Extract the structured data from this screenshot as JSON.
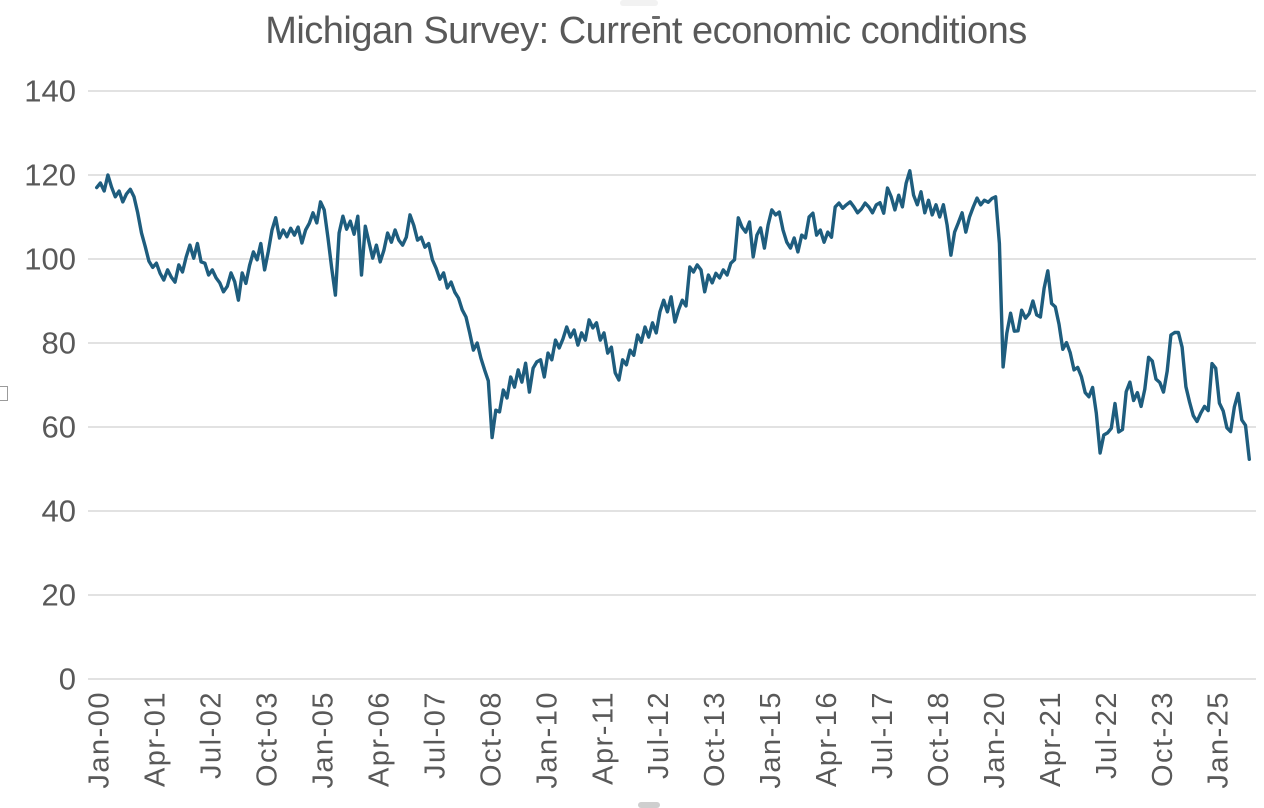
{
  "chart_data": {
    "type": "line",
    "title": "Michigan Survey: Current economic conditions",
    "xlabel": "",
    "ylabel": "",
    "ylim": [
      0,
      140
    ],
    "y_ticks": [
      0,
      20,
      40,
      60,
      80,
      100,
      120,
      140
    ],
    "grid": "horizontal",
    "legend": "none",
    "gridline_color": "#D9D9D9",
    "axis_label_color": "#595959",
    "title_color": "#595959",
    "x_tick_interval_months": 15,
    "x_tick_labels": [
      "Jan-00",
      "Apr-01",
      "Jul-02",
      "Oct-03",
      "Jan-05",
      "Apr-06",
      "Jul-07",
      "Oct-08",
      "Jan-10",
      "Apr-11",
      "Jul-12",
      "Oct-13",
      "Jan-15",
      "Apr-16",
      "Jul-17",
      "Oct-18",
      "Jan-20",
      "Apr-21",
      "Jul-22",
      "Oct-23",
      "Jan-25"
    ],
    "series": [
      {
        "name": "Current economic conditions",
        "color": "#1E5D7E",
        "frequency": "monthly",
        "start": "Jan-2000",
        "end": "Oct-2025",
        "values": [
          117.0,
          118.1,
          116.2,
          120.0,
          117.1,
          114.8,
          116.2,
          113.6,
          115.5,
          116.6,
          114.8,
          111.0,
          106.2,
          103.0,
          99.5,
          98.0,
          99.0,
          96.6,
          95.0,
          97.4,
          95.7,
          94.5,
          98.6,
          96.9,
          100.5,
          103.3,
          100.2,
          103.7,
          99.3,
          99.0,
          96.2,
          97.4,
          95.5,
          94.3,
          92.2,
          93.5,
          96.7,
          94.6,
          90.2,
          96.7,
          94.2,
          98.5,
          101.7,
          99.8,
          103.7,
          97.4,
          101.8,
          106.9,
          109.8,
          105.0,
          106.9,
          105.3,
          107.3,
          105.7,
          107.6,
          103.8,
          106.9,
          108.5,
          111.0,
          108.6,
          113.6,
          111.7,
          105.0,
          97.8,
          91.4,
          106.2,
          110.2,
          107.1,
          109.0,
          105.9,
          110.2,
          96.2,
          107.8,
          104.0,
          100.2,
          103.3,
          99.3,
          102.1,
          106.2,
          104.0,
          106.9,
          104.5,
          103.3,
          105.2,
          110.5,
          108.0,
          104.5,
          105.2,
          102.8,
          103.7,
          99.8,
          97.8,
          95.2,
          96.7,
          93.1,
          94.5,
          92.1,
          90.7,
          87.9,
          86.2,
          82.4,
          78.3,
          80.0,
          76.4,
          73.6,
          71.0,
          57.5,
          64.0,
          63.6,
          68.8,
          66.9,
          71.9,
          69.5,
          73.6,
          70.7,
          75.2,
          68.3,
          74.0,
          75.5,
          76.0,
          71.9,
          77.6,
          76.0,
          80.7,
          78.8,
          81.0,
          83.8,
          81.4,
          83.1,
          79.5,
          82.4,
          80.7,
          85.5,
          83.6,
          84.8,
          80.7,
          82.4,
          77.6,
          79.0,
          72.9,
          71.2,
          76.0,
          74.8,
          78.3,
          77.1,
          81.9,
          80.2,
          83.8,
          81.4,
          84.8,
          82.4,
          87.4,
          90.2,
          87.4,
          91.0,
          85.0,
          87.9,
          90.2,
          88.8,
          98.1,
          96.9,
          98.6,
          97.4,
          92.2,
          96.2,
          94.3,
          96.6,
          95.5,
          97.4,
          96.2,
          99.0,
          99.8,
          109.8,
          107.6,
          106.4,
          108.8,
          100.5,
          105.7,
          107.4,
          102.6,
          108.1,
          111.7,
          110.5,
          111.2,
          106.9,
          104.0,
          102.6,
          105.0,
          101.7,
          105.7,
          105.0,
          110.0,
          110.9,
          105.7,
          106.9,
          104.0,
          106.4,
          105.2,
          112.4,
          113.3,
          112.1,
          112.9,
          113.6,
          112.4,
          111.0,
          111.9,
          113.3,
          112.4,
          111.0,
          112.9,
          113.4,
          110.9,
          116.9,
          114.8,
          111.7,
          115.2,
          112.4,
          118.0,
          121.0,
          115.2,
          112.9,
          116.0,
          111.0,
          114.0,
          110.5,
          112.9,
          110.0,
          112.9,
          108.1,
          100.9,
          106.4,
          108.6,
          111.0,
          106.4,
          110.0,
          112.4,
          114.5,
          112.9,
          114.0,
          113.5,
          114.4,
          114.8,
          103.7,
          74.3,
          82.3,
          87.1,
          82.8,
          82.9,
          87.8,
          85.9,
          87.0,
          90.0,
          86.7,
          86.2,
          93.0,
          97.2,
          89.4,
          88.6,
          84.5,
          78.5,
          80.1,
          77.7,
          73.6,
          74.2,
          72.0,
          68.2,
          67.2,
          69.4,
          63.3,
          53.8,
          58.1,
          58.6,
          59.7,
          65.6,
          58.8,
          59.4,
          68.4,
          70.7,
          66.3,
          68.2,
          64.9,
          69.0,
          76.6,
          75.7,
          71.4,
          70.6,
          68.3,
          73.3,
          81.9,
          82.5,
          82.5,
          79.0,
          69.6,
          65.9,
          62.7,
          61.3,
          63.3,
          64.9,
          63.9,
          75.1,
          74.0,
          65.7,
          63.8,
          59.8,
          58.9,
          64.8,
          68.0,
          61.7,
          60.4,
          52.3
        ]
      }
    ]
  }
}
